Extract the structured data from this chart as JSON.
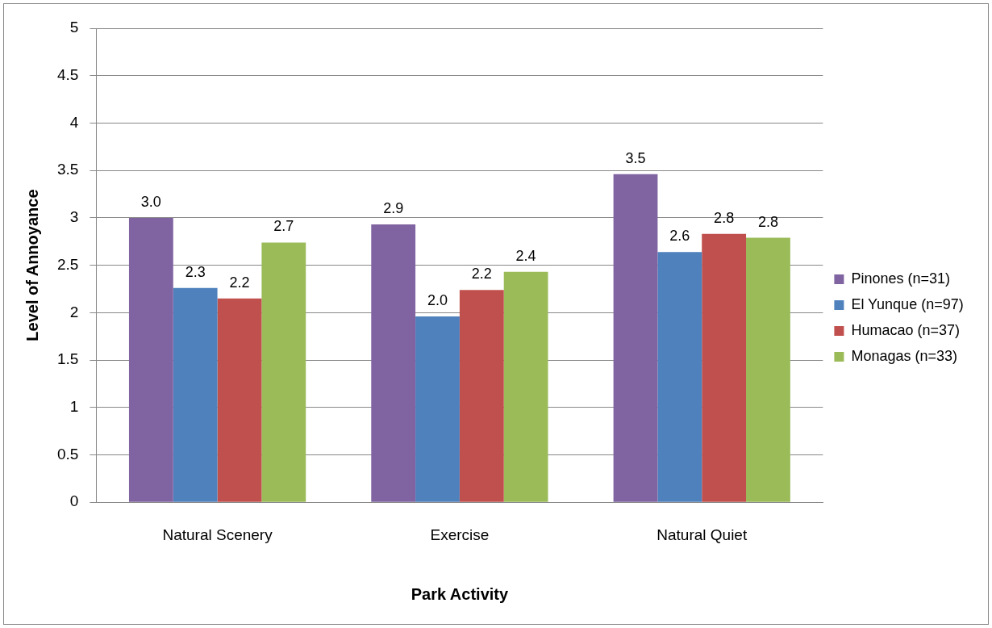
{
  "chart_data": {
    "type": "bar",
    "xlabel": "Park Activity",
    "ylabel": "Level of Annoyance",
    "categories": [
      "Natural Scenery",
      "Exercise",
      "Natural Quiet"
    ],
    "series": [
      {
        "name": "Pinones (n=31)",
        "color": "#8064a2",
        "values": [
          3.0,
          2.93,
          3.46
        ],
        "value_labels": [
          "3.0",
          "2.9",
          "3.5"
        ]
      },
      {
        "name": "El Yunque (n=97)",
        "color": "#4f81bd",
        "values": [
          2.26,
          1.96,
          2.64
        ],
        "value_labels": [
          "2.3",
          "2.0",
          "2.6"
        ]
      },
      {
        "name": "Humacao (n=37)",
        "color": "#c0504d",
        "values": [
          2.15,
          2.24,
          2.83
        ],
        "value_labels": [
          "2.2",
          "2.2",
          "2.8"
        ]
      },
      {
        "name": "Monagas (n=33)",
        "color": "#9bbb59",
        "values": [
          2.74,
          2.43,
          2.79
        ],
        "value_labels": [
          "2.7",
          "2.4",
          "2.8"
        ]
      }
    ],
    "ylim": [
      0,
      5
    ],
    "yticks": [
      0,
      0.5,
      1,
      1.5,
      2,
      2.5,
      3,
      3.5,
      4,
      4.5,
      5
    ],
    "grid": "y",
    "legend": "right"
  }
}
